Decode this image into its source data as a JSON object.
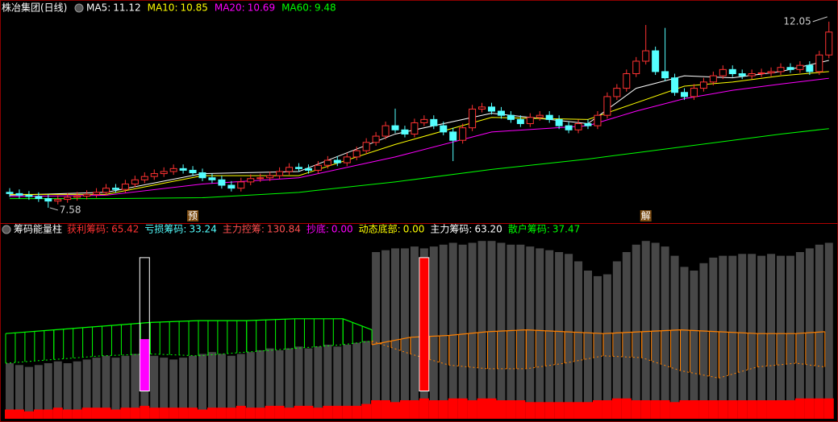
{
  "chart_data": [
    {
      "type": "candlestick",
      "title": "株冶集团(日线)",
      "open": [
        7.95,
        7.92,
        7.88,
        7.85,
        7.8,
        7.74,
        7.78,
        7.83,
        7.86,
        7.9,
        7.95,
        8.05,
        8.02,
        8.15,
        8.25,
        8.33,
        8.4,
        8.45,
        8.52,
        8.48,
        8.42,
        8.3,
        8.25,
        8.12,
        8.05,
        8.2,
        8.28,
        8.3,
        8.35,
        8.45,
        8.55,
        8.52,
        8.48,
        8.6,
        8.72,
        8.66,
        8.8,
        8.95,
        9.15,
        9.3,
        9.55,
        9.45,
        9.35,
        9.62,
        9.7,
        9.55,
        9.4,
        9.2,
        9.5,
        9.95,
        10.0,
        9.9,
        9.8,
        9.7,
        9.6,
        9.75,
        9.8,
        9.7,
        9.55,
        9.45,
        9.6,
        9.55,
        9.8,
        10.25,
        10.45,
        10.8,
        11.1,
        11.35,
        10.85,
        10.7,
        10.35,
        10.25,
        10.45,
        10.6,
        10.75,
        10.9,
        10.8,
        10.75,
        10.8,
        10.82,
        10.85,
        10.95,
        10.9,
        11.0,
        10.85,
        11.25
      ],
      "high": [
        8.05,
        8.02,
        7.98,
        7.95,
        7.9,
        7.88,
        7.93,
        7.96,
        8.0,
        8.05,
        8.15,
        8.15,
        8.25,
        8.35,
        8.43,
        8.5,
        8.55,
        8.62,
        8.62,
        8.58,
        8.52,
        8.4,
        8.35,
        8.22,
        8.3,
        8.38,
        8.4,
        8.45,
        8.55,
        8.65,
        8.65,
        8.62,
        8.7,
        8.82,
        8.82,
        8.9,
        9.05,
        9.25,
        9.4,
        9.65,
        9.96,
        9.55,
        9.72,
        9.8,
        9.8,
        9.65,
        9.5,
        9.6,
        10.05,
        10.1,
        10.1,
        10.0,
        9.9,
        9.8,
        9.85,
        9.9,
        9.9,
        9.8,
        9.65,
        9.7,
        9.7,
        9.9,
        10.35,
        10.55,
        10.9,
        11.2,
        11.97,
        11.45,
        11.9,
        10.8,
        10.45,
        10.55,
        10.7,
        10.85,
        11.0,
        11.0,
        10.9,
        10.9,
        10.92,
        10.95,
        11.05,
        11.05,
        11.1,
        11.1,
        11.35,
        12.05
      ],
      "low": [
        7.84,
        7.8,
        7.77,
        7.72,
        7.58,
        7.66,
        7.7,
        7.75,
        7.78,
        7.82,
        7.87,
        7.94,
        7.94,
        8.07,
        8.17,
        8.25,
        8.32,
        8.37,
        8.4,
        8.34,
        8.22,
        8.17,
        8.04,
        7.97,
        7.97,
        8.12,
        8.2,
        8.22,
        8.27,
        8.37,
        8.44,
        8.4,
        8.4,
        8.52,
        8.58,
        8.58,
        8.72,
        8.87,
        9.07,
        9.22,
        9.37,
        9.27,
        9.27,
        9.54,
        9.47,
        9.32,
        8.7,
        9.12,
        9.42,
        9.87,
        9.82,
        9.72,
        9.62,
        9.52,
        9.52,
        9.67,
        9.62,
        9.47,
        9.37,
        9.37,
        9.47,
        9.47,
        9.72,
        10.17,
        10.37,
        10.72,
        11.02,
        10.77,
        10.62,
        10.27,
        10.17,
        10.17,
        10.37,
        10.52,
        10.67,
        10.72,
        10.67,
        10.67,
        10.72,
        10.74,
        10.77,
        10.82,
        10.82,
        10.77,
        10.77,
        11.17
      ],
      "close": [
        7.92,
        7.88,
        7.85,
        7.8,
        7.74,
        7.78,
        7.83,
        7.86,
        7.9,
        7.95,
        8.05,
        8.02,
        8.15,
        8.25,
        8.33,
        8.4,
        8.45,
        8.52,
        8.48,
        8.42,
        8.3,
        8.25,
        8.12,
        8.05,
        8.2,
        8.28,
        8.3,
        8.35,
        8.45,
        8.55,
        8.52,
        8.48,
        8.6,
        8.72,
        8.66,
        8.8,
        8.95,
        9.15,
        9.3,
        9.55,
        9.45,
        9.35,
        9.62,
        9.7,
        9.55,
        9.4,
        9.2,
        9.5,
        9.95,
        10.0,
        9.9,
        9.8,
        9.7,
        9.6,
        9.75,
        9.8,
        9.7,
        9.55,
        9.45,
        9.6,
        9.55,
        9.8,
        10.25,
        10.45,
        10.8,
        11.1,
        11.35,
        10.85,
        10.7,
        10.35,
        10.25,
        10.45,
        10.6,
        10.75,
        10.9,
        10.8,
        10.75,
        10.8,
        10.82,
        10.85,
        10.95,
        10.9,
        11.0,
        10.85,
        11.25,
        11.8
      ],
      "up_color": "#ff3232",
      "down_color": "#54ffff",
      "ylim": [
        7.25,
        12.28
      ],
      "series": [
        {
          "name": "MA5:",
          "last": 11.12,
          "color": "#ffffff",
          "x": [
            0,
            10,
            20,
            30,
            40,
            50,
            60,
            65,
            70,
            75,
            80,
            85
          ],
          "values": [
            7.88,
            7.95,
            8.4,
            8.45,
            9.35,
            9.85,
            9.6,
            10.45,
            10.75,
            10.7,
            10.85,
            11.12
          ]
        },
        {
          "name": "MA10:",
          "last": 10.85,
          "color": "#ffff00",
          "x": [
            0,
            10,
            20,
            30,
            40,
            50,
            60,
            65,
            70,
            75,
            80,
            85
          ],
          "values": [
            7.9,
            7.9,
            8.35,
            8.35,
            9.1,
            9.75,
            9.7,
            10.1,
            10.5,
            10.6,
            10.75,
            10.85
          ]
        },
        {
          "name": "MA20:",
          "last": 10.69,
          "color": "#ff00ff",
          "x": [
            0,
            10,
            20,
            30,
            40,
            50,
            60,
            65,
            70,
            75,
            80,
            85
          ],
          "values": [
            7.85,
            7.88,
            8.15,
            8.3,
            8.8,
            9.4,
            9.55,
            9.9,
            10.2,
            10.4,
            10.55,
            10.69
          ]
        },
        {
          "name": "MA60:",
          "last": 9.48,
          "color": "#00ff00",
          "x": [
            0,
            10,
            20,
            30,
            40,
            50,
            60,
            65,
            70,
            75,
            80,
            85
          ],
          "values": [
            7.8,
            7.8,
            7.82,
            7.95,
            8.2,
            8.5,
            8.75,
            8.9,
            9.05,
            9.2,
            9.35,
            9.48
          ]
        }
      ],
      "annotations": [
        {
          "value": 12.05,
          "x": 85
        },
        {
          "value": 7.58,
          "x": 4
        }
      ],
      "markers": [
        {
          "text": "预",
          "x": 19
        },
        {
          "text": "解",
          "x": 66
        }
      ]
    },
    {
      "type": "chip",
      "title": "筹码能量柱",
      "legend": [
        {
          "name": "获利筹码:",
          "value": 65.42,
          "color": "#ff3232"
        },
        {
          "name": "亏损筹码:",
          "value": 33.24,
          "color": "#54ffff"
        },
        {
          "name": "主力控筹:",
          "value": 130.84,
          "color": "#ff5050"
        },
        {
          "name": "抄底:",
          "value": 0,
          "value_label": "0.00",
          "color": "#ff00ff"
        },
        {
          "name": "动态底部:",
          "value": 0,
          "value_label": "0.00",
          "color": "#ffff00"
        },
        {
          "name": "主力筹码:",
          "value": 63.2,
          "value_label": "63.20",
          "color": "#ffffff"
        },
        {
          "name": "散户筹码:",
          "value": 37.47,
          "color": "#00ff00"
        }
      ],
      "ylim": [
        0,
        100
      ],
      "bars": {
        "color": "#474747",
        "values": [
          30,
          29,
          28,
          29,
          30,
          31,
          30,
          31,
          32,
          33,
          34,
          33,
          34,
          35,
          36,
          34,
          33,
          32,
          33,
          34,
          35,
          36,
          35,
          34,
          35,
          36,
          37,
          38,
          37,
          38,
          39,
          38,
          39,
          40,
          39,
          40,
          41,
          42,
          90,
          91,
          92,
          92,
          93,
          92,
          93,
          94,
          95,
          94,
          95,
          96,
          96,
          95,
          94,
          94,
          93,
          92,
          91,
          90,
          89,
          85,
          80,
          77,
          78,
          85,
          90,
          94,
          96,
          95,
          93,
          88,
          82,
          80,
          84,
          87,
          88,
          88,
          89,
          89,
          88,
          89,
          88,
          88,
          90,
          92,
          94,
          95
        ]
      },
      "base": {
        "color": "#ff0000",
        "values": [
          5,
          5,
          4,
          5,
          5,
          6,
          5,
          5,
          6,
          6,
          6,
          5,
          6,
          6,
          7,
          6,
          6,
          6,
          6,
          6,
          5,
          6,
          6,
          6,
          7,
          6,
          6,
          7,
          7,
          6,
          7,
          7,
          6,
          7,
          7,
          7,
          7,
          8,
          10,
          10,
          9,
          10,
          10,
          11,
          10,
          10,
          11,
          11,
          10,
          11,
          11,
          10,
          10,
          10,
          9,
          9,
          9,
          9,
          9,
          9,
          9,
          10,
          10,
          11,
          11,
          10,
          10,
          10,
          10,
          9,
          10,
          10,
          10,
          10,
          10,
          10,
          10,
          10,
          10,
          10,
          10,
          10,
          11,
          11,
          11,
          11
        ]
      },
      "bands": [
        {
          "color": "#00ff00",
          "x": [
            0,
            5,
            10,
            15,
            20,
            25,
            30,
            35,
            38
          ],
          "top": [
            46,
            48,
            50,
            52,
            53,
            53,
            54,
            54,
            48
          ],
          "bottom": [
            30,
            32,
            34,
            35,
            34,
            36,
            38,
            40,
            42
          ]
        },
        {
          "color": "#ff8000",
          "x": [
            38,
            42,
            46,
            50,
            54,
            58,
            62,
            66,
            70,
            74,
            78,
            82,
            85
          ],
          "top": [
            40,
            44,
            45,
            47,
            48,
            47,
            46,
            47,
            48,
            47,
            46,
            46,
            47
          ],
          "bottom": [
            42,
            35,
            29,
            27,
            27,
            30,
            34,
            33,
            26,
            22,
            28,
            30,
            28
          ]
        }
      ],
      "signals": [
        {
          "x": 14,
          "top": 87,
          "bottom": 15,
          "fill_top": 43,
          "fill_color": "#ff00ff"
        },
        {
          "x": 43,
          "top": 87,
          "bottom": 15,
          "fill_top": 87,
          "fill_color": "#ff0000"
        }
      ]
    }
  ]
}
